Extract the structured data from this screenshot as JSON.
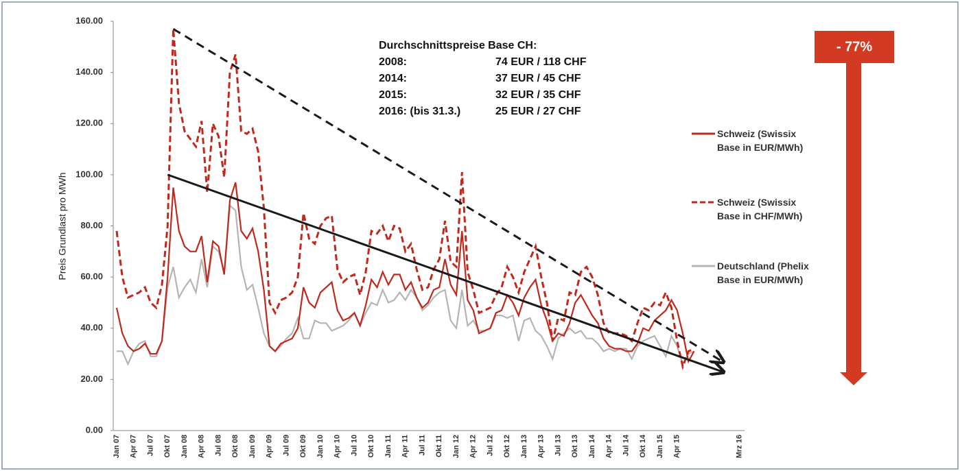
{
  "chart_data": {
    "type": "line",
    "y_label": "Preis Grundlast pro MWh",
    "ylim": [
      0,
      160
    ],
    "yticks": [
      {
        "value": 0,
        "label": "0.00"
      },
      {
        "value": 20,
        "label": "20.00"
      },
      {
        "value": 40,
        "label": "40.00"
      },
      {
        "value": 60,
        "label": "60.00"
      },
      {
        "value": 80,
        "label": "80.00"
      },
      {
        "value": 100,
        "label": "100.00"
      },
      {
        "value": 120,
        "label": "120.00"
      },
      {
        "value": 140,
        "label": "140.00"
      },
      {
        "value": 160,
        "label": "160.00"
      }
    ],
    "categories": [
      "Jan 07",
      null,
      null,
      "Apr 07",
      null,
      null,
      "Jul 07",
      null,
      null,
      "Okt 07",
      null,
      null,
      "Jan 08",
      null,
      null,
      "Apr 08",
      null,
      null,
      "Jul 08",
      null,
      null,
      "Okt 08",
      null,
      null,
      "Jan 09",
      null,
      null,
      "Apr 09",
      null,
      null,
      "Jul 09",
      null,
      null,
      "Okt 09",
      null,
      null,
      "Jan 10",
      null,
      null,
      "Apr 10",
      null,
      null,
      "Jul 10",
      null,
      null,
      "Okt 10",
      null,
      null,
      "Jan 11",
      null,
      null,
      "Apr 11",
      null,
      null,
      "Jul 11",
      null,
      null,
      "Okt 11",
      null,
      null,
      "Jan 12",
      null,
      null,
      "Apr 12",
      null,
      null,
      "Jul 12",
      null,
      null,
      "Okt 12",
      null,
      null,
      "Jan 13",
      null,
      null,
      "Apr 13",
      null,
      null,
      "Jul 13",
      null,
      null,
      "Okt 13",
      null,
      null,
      "Jan 14",
      null,
      null,
      "Apr 14",
      null,
      null,
      "Jul 14",
      null,
      null,
      "Okt 14",
      null,
      null,
      "Jan 15",
      null,
      null,
      "Apr 15",
      null,
      null,
      null,
      null,
      null,
      null,
      null,
      null,
      null,
      null,
      "Mrz 16"
    ],
    "series": [
      {
        "name": "Schweiz (Swissix Base in EUR/MWh)",
        "color": "#c0281c",
        "dash": false,
        "values": [
          48,
          38,
          33,
          31,
          32,
          34,
          30,
          30,
          35,
          60,
          95,
          78,
          72,
          70,
          70,
          76,
          58,
          74,
          72,
          61,
          90,
          97,
          78,
          75,
          79,
          70,
          55,
          33,
          31,
          34,
          35,
          36,
          40,
          56,
          50,
          48,
          54,
          56,
          58,
          47,
          43,
          44,
          46,
          41,
          49,
          59,
          56,
          62,
          57,
          61,
          61,
          55,
          58,
          52,
          48,
          50,
          55,
          56,
          67,
          57,
          53,
          78,
          51,
          47,
          38,
          39,
          40,
          46,
          47,
          53,
          50,
          45,
          52,
          56,
          59,
          49,
          43,
          35,
          38,
          37,
          42,
          50,
          53,
          49,
          45,
          42,
          36,
          33,
          32,
          32,
          31,
          31,
          34,
          40,
          39,
          43,
          45,
          47,
          51,
          47,
          38,
          27,
          31,
          null,
          null,
          null,
          null,
          null,
          null,
          null,
          null
        ]
      },
      {
        "name": "Schweiz (Swissix Base in CHF/MWh)",
        "color": "#c0281c",
        "dash": true,
        "values": [
          78,
          60,
          52,
          53,
          54,
          56,
          50,
          48,
          57,
          80,
          157,
          128,
          117,
          114,
          111,
          121,
          93,
          120,
          115,
          99,
          140,
          147,
          117,
          116,
          118,
          109,
          87,
          50,
          46,
          51,
          52,
          54,
          60,
          85,
          75,
          73,
          80,
          83,
          84,
          63,
          58,
          60,
          61,
          53,
          62,
          78,
          77,
          80,
          74,
          80,
          79,
          70,
          73,
          63,
          55,
          56,
          63,
          67,
          82,
          66,
          64,
          101,
          62,
          55,
          46,
          47,
          48,
          53,
          56,
          64,
          60,
          54,
          62,
          67,
          72,
          60,
          50,
          35,
          44,
          43,
          54,
          53,
          62,
          64,
          60,
          53,
          42,
          38,
          38,
          38,
          37,
          35,
          42,
          48,
          47,
          50,
          49,
          54,
          48,
          35,
          25,
          31,
          32,
          null,
          null,
          null,
          null,
          null,
          null,
          null,
          null
        ]
      },
      {
        "name": "Deutschland (Phelix Base in EUR/MWh)",
        "color": "#b4b4b4",
        "dash": false,
        "values": [
          31,
          31,
          26,
          31,
          34,
          35,
          29,
          29,
          35,
          56,
          64,
          52,
          56,
          59,
          54,
          67,
          56,
          72,
          70,
          62,
          88,
          86,
          64,
          55,
          57,
          48,
          38,
          33,
          31,
          33,
          36,
          38,
          44,
          36,
          36,
          43,
          42,
          42,
          39,
          40,
          41,
          43,
          46,
          41,
          46,
          50,
          49,
          55,
          50,
          51,
          54,
          51,
          55,
          52,
          47,
          49,
          52,
          54,
          55,
          43,
          40,
          55,
          41,
          43,
          39,
          39,
          40,
          45,
          45,
          44,
          45,
          35,
          43,
          44,
          39,
          37,
          33,
          28,
          36,
          38,
          40,
          38,
          39,
          36,
          36,
          34,
          31,
          32,
          31,
          32,
          32,
          28,
          33,
          35,
          36,
          37,
          33,
          29,
          37,
          33,
          26,
          30,
          31,
          null,
          null,
          null,
          null,
          null,
          null,
          null,
          null
        ]
      }
    ],
    "trendlines": [
      {
        "x": [
          10,
          107
        ],
        "values": [
          157,
          27
        ],
        "dash": true,
        "color": "#1a1a1a"
      },
      {
        "x": [
          9,
          107
        ],
        "values": [
          100,
          23
        ],
        "dash": false,
        "color": "#1a1a1a"
      }
    ],
    "annotation": {
      "title": "Durchschnittspreise Base CH:",
      "rows": [
        [
          "2008:",
          "74 EUR / 118 CHF"
        ],
        [
          "2014:",
          "37 EUR / 45 CHF"
        ],
        [
          "2015:",
          "32 EUR / 35 CHF"
        ],
        [
          "2016: (bis 31.3.)",
          "25 EUR / 27 CHF"
        ]
      ]
    },
    "reduction_label": "- 77%",
    "reduction_color": "#d23a22"
  }
}
